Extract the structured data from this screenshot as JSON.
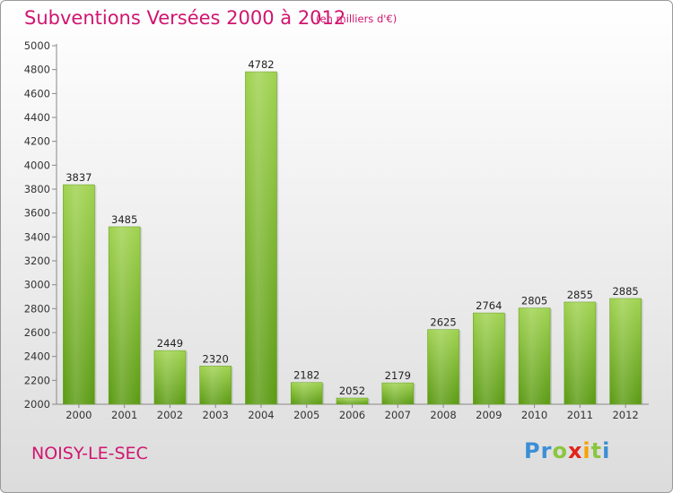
{
  "header": {
    "title": "Subventions Versées 2000 à 2012",
    "subtitle": "(en milliers d'€)"
  },
  "footer": {
    "city": "NOISY-LE-SEC",
    "brand": "Proxiti",
    "brand_letters": [
      "P",
      "r",
      "o",
      "x",
      "i",
      "t",
      "i"
    ],
    "brand_colors": [
      "#3a8fd6",
      "#3a8fd6",
      "#8bc63f",
      "#e2231a",
      "#f7a300",
      "#8bc63f",
      "#3a8fd6"
    ]
  },
  "chart_data": {
    "type": "bar",
    "title": "Subventions Versées 2000 à 2012",
    "subtitle": "(en milliers d'€)",
    "xlabel": "",
    "ylabel": "",
    "categories": [
      "2000",
      "2001",
      "2002",
      "2003",
      "2004",
      "2005",
      "2006",
      "2007",
      "2008",
      "2009",
      "2010",
      "2011",
      "2012"
    ],
    "values": [
      3837,
      3485,
      2449,
      2320,
      4782,
      2182,
      2052,
      2179,
      2625,
      2764,
      2805,
      2855,
      2885
    ],
    "ylim": [
      2000,
      5000
    ],
    "yticks": [
      2000,
      2200,
      2400,
      2600,
      2800,
      3000,
      3200,
      3400,
      3600,
      3800,
      4000,
      4200,
      4400,
      4600,
      4800,
      5000
    ],
    "grid": false,
    "colors": {
      "bar_top": "#9fd24e",
      "bar_bottom": "#5a9a12",
      "text": "#d0156f"
    }
  }
}
